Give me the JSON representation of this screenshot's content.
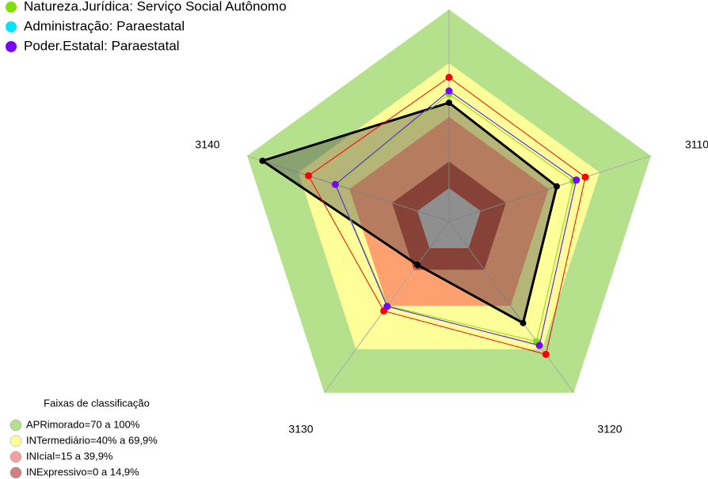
{
  "chart_data": {
    "type": "radar",
    "categories": [
      null,
      "3110",
      "3120",
      "3130",
      "3140"
    ],
    "rlim": [
      0,
      100
    ],
    "series": [
      {
        "color": "#ff0000",
        "values": [
          62,
          61.5,
          73.5,
          43.4,
          64
        ]
      },
      {
        "name": "Natureza.Jurídica: Serviço Social Autônomo",
        "color": "#80e000",
        "values": [
          52.7,
          54.4,
          64.6,
          39.8,
          47.8
        ]
      },
      {
        "name": "Administração: Paraestatal",
        "color": "#00e5ff",
        "values": [
          54.4,
          56.2,
          67.3,
          40.3,
          48.2
        ]
      },
      {
        "name": "Poder.Estatal: Paraestatal",
        "color": "#7a00ff",
        "values": [
          54.4,
          56.2,
          67.3,
          40.3,
          48.2
        ]
      },
      {
        "color": "#000000",
        "fill": true,
        "values": [
          47.8,
          44.7,
          51.8,
          11.5,
          91
        ]
      }
    ],
    "bands_title": "Faixas de classificação",
    "bands": [
      {
        "label": "APRimorado=70 a 100%",
        "from": 70,
        "to": 100,
        "color": "#b5e08c",
        "legend_color": "#b5e08c"
      },
      {
        "label": "INTermediário=40% a 69,9%",
        "from": 40,
        "to": 69.9,
        "color": "#ffff99",
        "legend_color": "#ffff99"
      },
      {
        "label": "INIcial=15 a 39,9%",
        "from": 15,
        "to": 39.9,
        "color": "#ffa070",
        "legend_color": "#f4a0a0"
      },
      {
        "label": "INExpressivo=0 a 14,9%",
        "from": 0,
        "to": 14.9,
        "color": "#b3402e",
        "legend_color": "#d08080"
      }
    ]
  }
}
